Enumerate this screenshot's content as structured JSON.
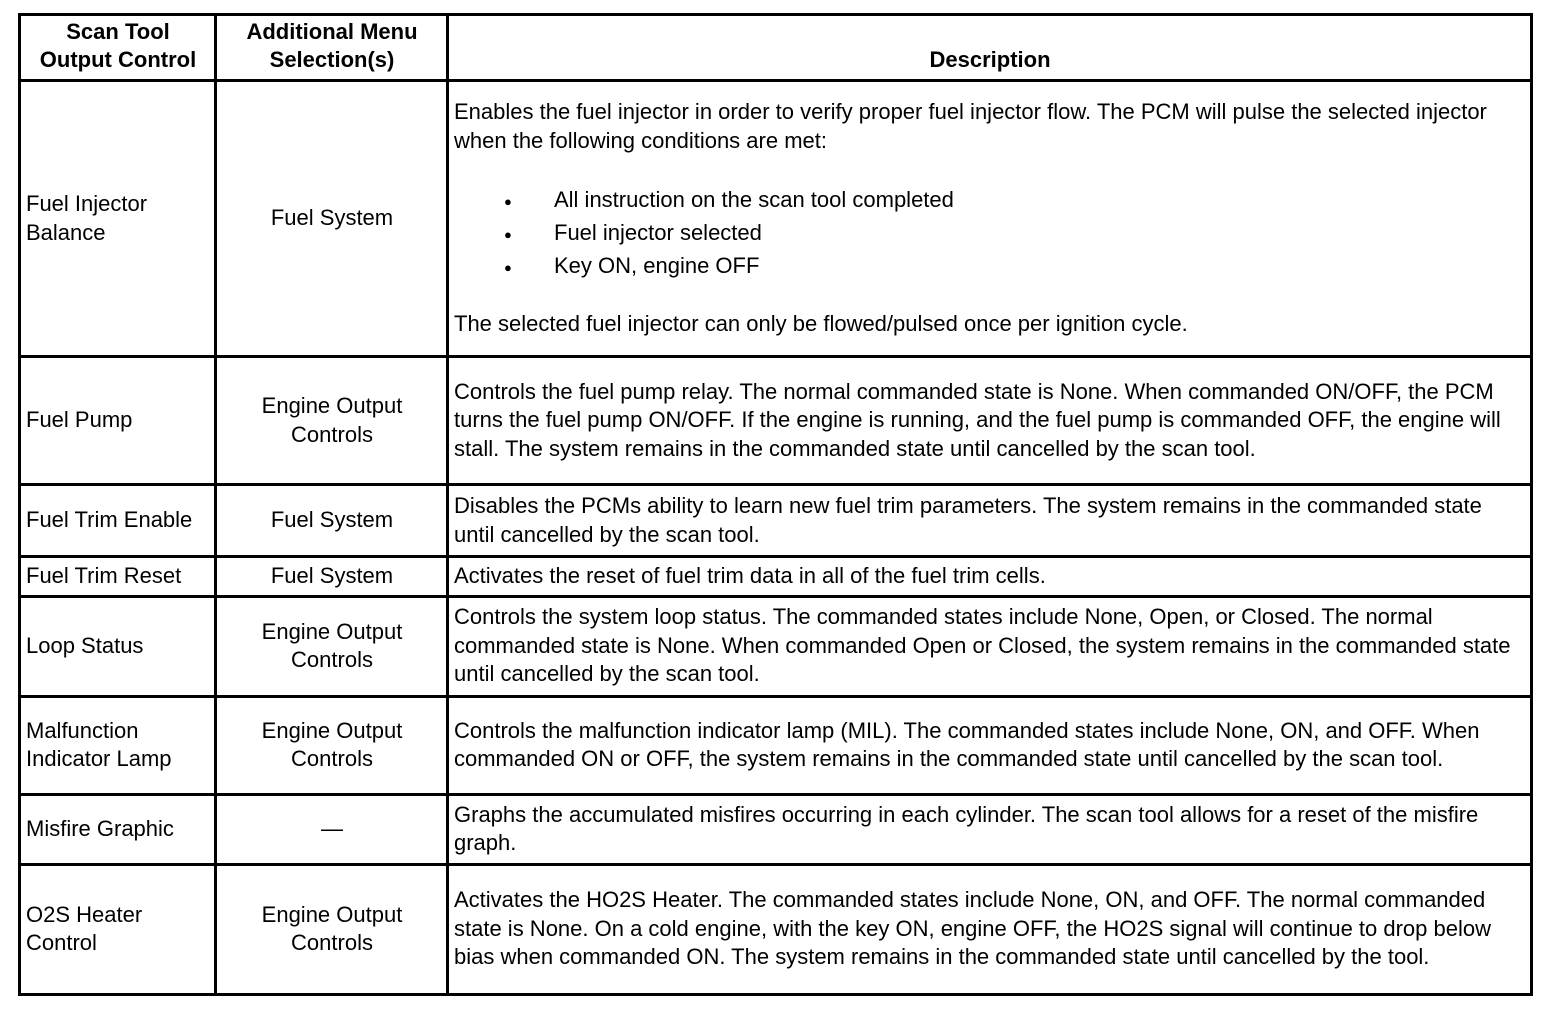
{
  "headers": [
    "Scan Tool Output Control",
    "Additional Menu Selection(s)",
    "Description"
  ],
  "headers_lines": [
    [
      "Scan Tool",
      "Output Control"
    ],
    [
      "Additional Menu",
      "Selection(s)"
    ],
    [
      "Description"
    ]
  ],
  "rows": [
    {
      "control": "Fuel Injector Balance",
      "menu": "Fuel System",
      "description": "Enables the fuel injector in order to verify proper fuel injector flow. The PCM will pulse the selected injector when the following conditions are met:",
      "bullets": [
        "All instruction on the scan tool completed",
        "Fuel injector selected",
        "Key ON, engine OFF"
      ],
      "description_after": "The selected fuel injector can only be flowed/pulsed once per ignition cycle."
    },
    {
      "control": "Fuel Pump",
      "menu": "Engine Output Controls",
      "description": "Controls the fuel pump relay. The normal commanded state is None. When commanded ON/OFF, the PCM turns the fuel pump ON/OFF. If the engine is running, and the fuel pump is commanded OFF, the engine will stall. The system remains in the commanded state until cancelled by the scan tool."
    },
    {
      "control": "Fuel Trim Enable",
      "menu": "Fuel System",
      "description": "Disables the PCMs ability to learn new fuel trim parameters. The system remains in the commanded state until cancelled by the scan tool."
    },
    {
      "control": "Fuel Trim Reset",
      "menu": "Fuel System",
      "description": "Activates the reset of fuel trim data in all of the fuel trim cells."
    },
    {
      "control": "Loop Status",
      "menu": "Engine Output Controls",
      "description": "Controls the system loop status. The commanded states include None, Open, or Closed. The normal commanded state is None. When commanded Open or Closed, the system remains in the commanded state until cancelled by the scan tool."
    },
    {
      "control": "Malfunction Indicator Lamp",
      "menu": "Engine Output Controls",
      "description": "Controls the malfunction indicator lamp (MIL). The commanded states include None, ON, and OFF. When commanded ON or OFF, the system remains in the commanded state until cancelled by the scan tool."
    },
    {
      "control": "Misfire Graphic",
      "menu": "—",
      "description": "Graphs the accumulated misfires occurring in each cylinder. The scan tool allows for a reset of the misfire graph."
    },
    {
      "control": "O2S Heater Control",
      "menu": "Engine Output Controls",
      "description": "Activates the HO2S Heater. The commanded states include None, ON, and OFF. The normal commanded state is None. On a cold engine, with the key ON, engine OFF, the HO2S signal will continue to drop below bias when commanded ON. The system remains in the commanded state until cancelled by the tool."
    }
  ]
}
